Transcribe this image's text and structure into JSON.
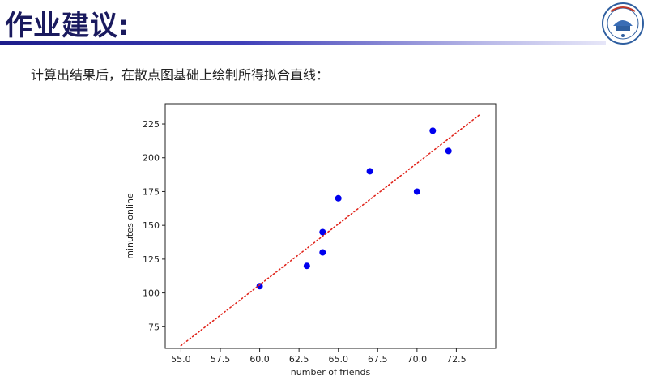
{
  "slide": {
    "title": "作业建议:",
    "instruction": "计算出结果后，在散点图基础上绘制所得拟合直线："
  },
  "colors": {
    "title": "#1a1a5e",
    "accent_bar": "#2e2ea8",
    "points": "#0000ee",
    "fit_line": "#e0241b"
  },
  "icons": {
    "logo": "university-seal-logo"
  },
  "chart_data": {
    "type": "scatter",
    "title": "",
    "xlabel": "number of friends",
    "ylabel": "minutes online",
    "xlim": [
      54,
      75
    ],
    "ylim": [
      59,
      240
    ],
    "xticks": [
      "55.0",
      "57.5",
      "60.0",
      "62.5",
      "65.0",
      "67.5",
      "70.0",
      "72.5"
    ],
    "xtick_values": [
      55,
      57.5,
      60,
      62.5,
      65,
      67.5,
      70,
      72.5
    ],
    "yticks": [
      "75",
      "100",
      "125",
      "150",
      "175",
      "200",
      "225"
    ],
    "ytick_values": [
      75,
      100,
      125,
      150,
      175,
      200,
      225
    ],
    "grid": false,
    "series": [
      {
        "type": "scatter",
        "x": [
          60,
          63,
          64,
          64,
          65,
          67,
          70,
          71,
          72
        ],
        "y": [
          105,
          120,
          130,
          145,
          170,
          190,
          175,
          220,
          205
        ],
        "color": "#0000ee"
      },
      {
        "type": "line",
        "style": "dotted",
        "x": [
          55,
          74
        ],
        "y": [
          61,
          232
        ],
        "color": "#e0241b"
      }
    ]
  }
}
